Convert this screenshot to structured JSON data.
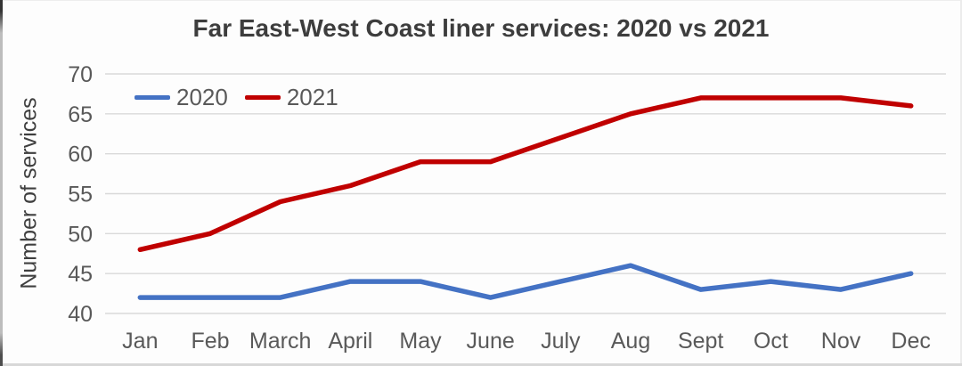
{
  "title": "Far East-West Coast liner services: 2020 vs 2021",
  "chart_data": {
    "type": "line",
    "title": "Far East-West Coast liner services: 2020 vs 2021",
    "xlabel": "",
    "ylabel": "Number of services",
    "categories": [
      "Jan",
      "Feb",
      "March",
      "April",
      "May",
      "June",
      "July",
      "Aug",
      "Sept",
      "Oct",
      "Nov",
      "Dec"
    ],
    "series": [
      {
        "name": "2020",
        "color": "#4472c4",
        "values": [
          42,
          42,
          42,
          44,
          44,
          42,
          44,
          46,
          43,
          44,
          43,
          45
        ]
      },
      {
        "name": "2021",
        "color": "#c00000",
        "values": [
          48,
          50,
          54,
          56,
          59,
          59,
          62,
          65,
          67,
          67,
          67,
          66
        ]
      }
    ],
    "ylim": [
      40,
      70
    ],
    "yticks": [
      40,
      45,
      50,
      55,
      60,
      65,
      70
    ],
    "grid": true,
    "grid_color": "#d9d9d9",
    "legend_position": "top-left-inside",
    "tick_text_color": "#595959",
    "title_text_color": "#3d3d3d"
  }
}
